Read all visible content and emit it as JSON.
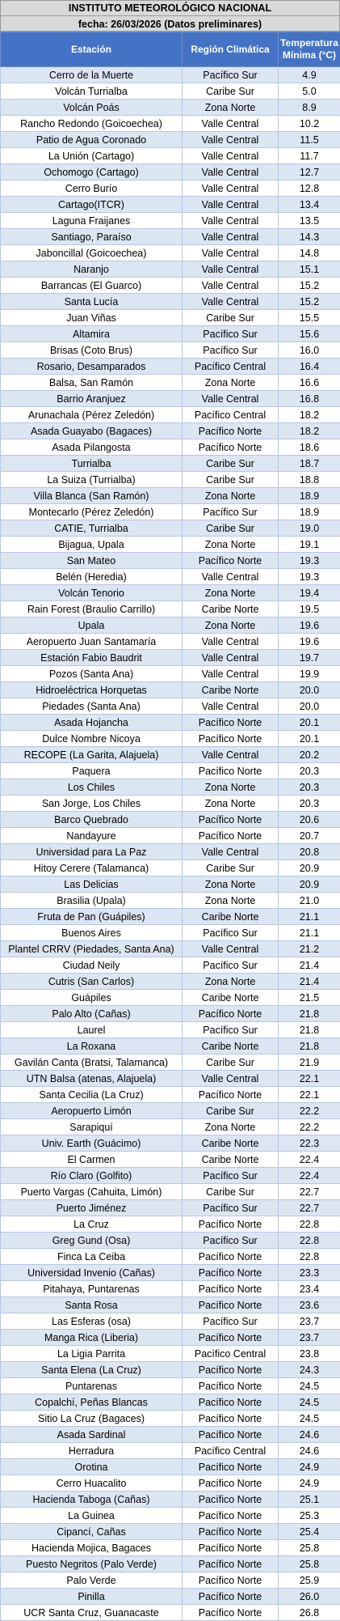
{
  "header": {
    "institution": "INSTITUTO METEOROLÓGICO NACIONAL",
    "date_line": "fecha: 26/03/2026 (Datos preliminares)"
  },
  "table": {
    "columns": [
      "Estación",
      "Región Climática",
      "Temperatura Mínima (°C)"
    ],
    "rows": [
      [
        "Cerro de la Muerte",
        "Pacífico Sur",
        "4.9"
      ],
      [
        "Volcán Turrialba",
        "Caribe Sur",
        "5.0"
      ],
      [
        "Volcán Poás",
        "Zona Norte",
        "8.9"
      ],
      [
        "Rancho Redondo (Goicoechea)",
        "Valle Central",
        "10.2"
      ],
      [
        "Patio de Agua Coronado",
        "Valle Central",
        "11.5"
      ],
      [
        "La Unión (Cartago)",
        "Valle Central",
        "11.7"
      ],
      [
        "Ochomogo (Cartago)",
        "Valle Central",
        "12.7"
      ],
      [
        "Cerro Burío",
        "Valle Central",
        "12.8"
      ],
      [
        "Cartago(ITCR)",
        "Valle Central",
        "13.4"
      ],
      [
        "Laguna Fraijanes",
        "Valle Central",
        "13.5"
      ],
      [
        "Santiago, Paraíso",
        "Valle Central",
        "14.3"
      ],
      [
        "Jaboncillal (Goicoechea)",
        "Valle Central",
        "14.8"
      ],
      [
        "Naranjo",
        "Valle Central",
        "15.1"
      ],
      [
        "Barrancas (El Guarco)",
        "Valle Central",
        "15.2"
      ],
      [
        "Santa Lucía",
        "Valle Central",
        "15.2"
      ],
      [
        "Juan Viñas",
        "Caribe Sur",
        "15.5"
      ],
      [
        "Altamira",
        "Pacífico Sur",
        "15.6"
      ],
      [
        "Brisas (Coto Brus)",
        "Pacífico Sur",
        "16.0"
      ],
      [
        "Rosario, Desamparados",
        "Pacífico Central",
        "16.4"
      ],
      [
        "Balsa, San Ramón",
        "Zona Norte",
        "16.6"
      ],
      [
        "Barrio Aranjuez",
        "Valle Central",
        "16.8"
      ],
      [
        "Arunachala (Pérez Zeledón)",
        "Pacífico Central",
        "18.2"
      ],
      [
        "Asada Guayabo (Bagaces)",
        "Pacífico Norte",
        "18.2"
      ],
      [
        "Asada Pilangosta",
        "Pacífico Norte",
        "18.6"
      ],
      [
        "Turrialba",
        "Caribe Sur",
        "18.7"
      ],
      [
        "La Suiza (Turrialba)",
        "Caribe Sur",
        "18.8"
      ],
      [
        "Villa Blanca (San Ramón)",
        "Zona Norte",
        "18.9"
      ],
      [
        "Montecarlo (Pérez Zeledón)",
        "Pacífico Sur",
        "18.9"
      ],
      [
        "CATIE, Turrialba",
        "Caribe Sur",
        "19.0"
      ],
      [
        "Bijagua, Upala",
        "Zona Norte",
        "19.1"
      ],
      [
        "San Mateo",
        "Pacífico Norte",
        "19.3"
      ],
      [
        "Belén (Heredia)",
        "Valle Central",
        "19.3"
      ],
      [
        "Volcán Tenorio",
        "Zona Norte",
        "19.4"
      ],
      [
        "Rain Forest (Braulio Carrillo)",
        "Caribe Norte",
        "19.5"
      ],
      [
        "Upala",
        "Zona Norte",
        "19.6"
      ],
      [
        "Aeropuerto Juan Santamaría",
        "Valle Central",
        "19.6"
      ],
      [
        "Estación Fabio Baudrit",
        "Valle Central",
        "19.7"
      ],
      [
        "Pozos (Santa Ana)",
        "Valle Central",
        "19.9"
      ],
      [
        "Hidroeléctrica Horquetas",
        "Caribe Norte",
        "20.0"
      ],
      [
        "Piedades (Santa Ana)",
        "Valle Central",
        "20.0"
      ],
      [
        "Asada Hojancha",
        "Pacífico Norte",
        "20.1"
      ],
      [
        "Dulce Nombre Nicoya",
        "Pacífico Norte",
        "20.1"
      ],
      [
        "RECOPE (La Garita, Alajuela)",
        "Valle Central",
        "20.2"
      ],
      [
        "Paquera",
        "Pacífico Norte",
        "20.3"
      ],
      [
        "Los Chiles",
        "Zona Norte",
        "20.3"
      ],
      [
        "San Jorge, Los Chiles",
        "Zona Norte",
        "20.3"
      ],
      [
        "Barco Quebrado",
        "Pacífico Norte",
        "20.6"
      ],
      [
        "Nandayure",
        "Pacífico Norte",
        "20.7"
      ],
      [
        "Universidad para La Paz",
        "Valle Central",
        "20.8"
      ],
      [
        "Hitoy Cerere (Talamanca)",
        "Caribe Sur",
        "20.9"
      ],
      [
        "Las Delicias",
        "Zona Norte",
        "20.9"
      ],
      [
        "Brasilia (Upala)",
        "Zona Norte",
        "21.0"
      ],
      [
        "Fruta de Pan (Guápiles)",
        "Caribe Norte",
        "21.1"
      ],
      [
        "Buenos Aires",
        "Pacífico Sur",
        "21.1"
      ],
      [
        "Plantel CRRV (Piedades, Santa Ana)",
        "Valle Central",
        "21.2"
      ],
      [
        "Ciudad Neily",
        "Pacífico Sur",
        "21.4"
      ],
      [
        "Cutris (San Carlos)",
        "Zona Norte",
        "21.4"
      ],
      [
        "Guápiles",
        "Caribe Norte",
        "21.5"
      ],
      [
        "Palo Alto (Cañas)",
        "Pacífico Norte",
        "21.8"
      ],
      [
        "Laurel",
        "Pacífico Sur",
        "21.8"
      ],
      [
        "La Roxana",
        "Caribe Norte",
        "21.8"
      ],
      [
        "Gavilán Canta (Bratsi, Talamanca)",
        "Caribe Sur",
        "21.9"
      ],
      [
        "UTN Balsa (atenas, Alajuela)",
        "Valle Central",
        "22.1"
      ],
      [
        "Santa Cecilia (La Cruz)",
        "Pacífico Norte",
        "22.1"
      ],
      [
        "Aeropuerto Limón",
        "Caribe Sur",
        "22.2"
      ],
      [
        "Sarapiquí",
        "Zona Norte",
        "22.2"
      ],
      [
        "Univ. Earth (Guácimo)",
        "Caribe Norte",
        "22.3"
      ],
      [
        "El Carmen",
        "Caribe Norte",
        "22.4"
      ],
      [
        "Río Claro (Golfito)",
        "Pacífico Sur",
        "22.4"
      ],
      [
        "Puerto Vargas (Cahuita, Limón)",
        "Caribe Sur",
        "22.7"
      ],
      [
        "Puerto Jiménez",
        "Pacífico Sur",
        "22.7"
      ],
      [
        "La Cruz",
        "Pacífico Norte",
        "22.8"
      ],
      [
        "Greg Gund (Osa)",
        "Pacífico Sur",
        "22.8"
      ],
      [
        "Finca La Ceiba",
        "Pacífico Norte",
        "22.8"
      ],
      [
        "Universidad Invenio (Cañas)",
        "Pacífico Norte",
        "23.3"
      ],
      [
        "Pitahaya, Puntarenas",
        "Pacífico Norte",
        "23.4"
      ],
      [
        "Santa Rosa",
        "Pacífico Norte",
        "23.6"
      ],
      [
        "Las Esferas (osa)",
        "Pacífico Sur",
        "23.7"
      ],
      [
        "Manga Rica (Liberia)",
        "Pacífico Norte",
        "23.7"
      ],
      [
        "La Ligia Parrita",
        "Pacífico Central",
        "23.8"
      ],
      [
        "Santa Elena (La Cruz)",
        "Pacífico Norte",
        "24.3"
      ],
      [
        "Puntarenas",
        "Pacífico Norte",
        "24.5"
      ],
      [
        "Copalchí, Peñas Blancas",
        "Pacífico Norte",
        "24.5"
      ],
      [
        "Sitio La Cruz (Bagaces)",
        "Pacífico Norte",
        "24.5"
      ],
      [
        "Asada Sardinal",
        "Pacífico Norte",
        "24.6"
      ],
      [
        "Herradura",
        "Pacífico Central",
        "24.6"
      ],
      [
        "Orotina",
        "Pacífico Norte",
        "24.9"
      ],
      [
        "Cerro Huacalito",
        "Pacífico Norte",
        "24.9"
      ],
      [
        "Hacienda Taboga (Cañas)",
        "Pacífico Norte",
        "25.1"
      ],
      [
        "La Guinea",
        "Pacífico Norte",
        "25.3"
      ],
      [
        "Cipancí, Cañas",
        "Pacífico Norte",
        "25.4"
      ],
      [
        "Hacienda Mojica, Bagaces",
        "Pacífico Norte",
        "25.8"
      ],
      [
        "Puesto Negritos (Palo Verde)",
        "Pacífico Norte",
        "25.8"
      ],
      [
        "Palo Verde",
        "Pacífico Norte",
        "25.9"
      ],
      [
        "Pinilla",
        "Pacífico Norte",
        "26.0"
      ],
      [
        "UCR Santa Cruz, Guanacaste",
        "Pacífico Norte",
        "26.8"
      ]
    ]
  }
}
